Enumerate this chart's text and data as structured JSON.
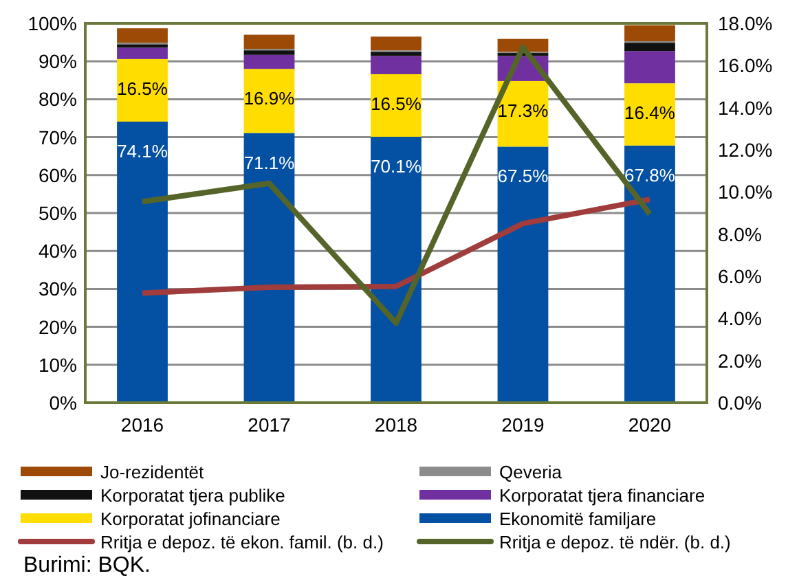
{
  "chart_data": {
    "type": "bar",
    "stacked": true,
    "categories": [
      "2016",
      "2017",
      "2018",
      "2019",
      "2020"
    ],
    "series": [
      {
        "name": "Ekonomitë familjare",
        "color": "#0450a2",
        "values": [
          74.1,
          71.1,
          70.1,
          67.5,
          67.8
        ],
        "value_labels": [
          "74.1%",
          "71.1%",
          "70.1%",
          "67.5%",
          "67.8%"
        ]
      },
      {
        "name": "Korporatat jofinanciare",
        "color": "#ffdd00",
        "values": [
          16.5,
          16.9,
          16.5,
          17.3,
          16.4
        ],
        "value_labels": [
          "16.5%",
          "16.9%",
          "16.5%",
          "17.3%",
          "16.4%"
        ]
      },
      {
        "name": "Korporatat tjera financiare",
        "color": "#7030a0",
        "values": [
          3.0,
          3.7,
          4.8,
          6.6,
          8.5
        ]
      },
      {
        "name": "Korporatat tjera publike",
        "color": "#111111",
        "values": [
          0.9,
          1.2,
          1.1,
          0.8,
          2.2
        ]
      },
      {
        "name": "Qeveria",
        "color": "#8c8c8c",
        "values": [
          0.4,
          0.4,
          0.4,
          0.3,
          0.4
        ]
      },
      {
        "name": "Jo-rezidentët",
        "color": "#9c4a06",
        "values": [
          3.8,
          3.7,
          3.6,
          3.4,
          4.2
        ]
      },
      {
        "name": "Rritja e depoz. të ekon. famil. (b. d.)",
        "type": "line",
        "axis": "y2",
        "color": "#a03c3c",
        "values": [
          5.2,
          5.48,
          5.52,
          8.5,
          9.65
        ]
      },
      {
        "name": "Rritja e depoz. të ndër. (b. d.)",
        "type": "line",
        "axis": "y2",
        "color": "#55652a",
        "values": [
          9.54,
          10.41,
          3.78,
          16.87,
          8.95
        ]
      }
    ],
    "ylim": [
      0,
      100
    ],
    "yticks": [
      {
        "value": 0,
        "label": "0%"
      },
      {
        "value": 10,
        "label": "10%"
      },
      {
        "value": 20,
        "label": "20%"
      },
      {
        "value": 30,
        "label": "30%"
      },
      {
        "value": 40,
        "label": "40%"
      },
      {
        "value": 50,
        "label": "50%"
      },
      {
        "value": 60,
        "label": "60%"
      },
      {
        "value": 70,
        "label": "70%"
      },
      {
        "value": 80,
        "label": "80%"
      },
      {
        "value": 90,
        "label": "90%"
      },
      {
        "value": 100,
        "label": "100%"
      }
    ],
    "y2lim": [
      0,
      18
    ],
    "y2ticks": [
      {
        "value": 0,
        "label": "0.0%"
      },
      {
        "value": 2,
        "label": "2.0%"
      },
      {
        "value": 4,
        "label": "4.0%"
      },
      {
        "value": 6,
        "label": "6.0%"
      },
      {
        "value": 8,
        "label": "8.0%"
      },
      {
        "value": 10,
        "label": "10.0%"
      },
      {
        "value": 12,
        "label": "12.0%"
      },
      {
        "value": 14,
        "label": "14.0%"
      },
      {
        "value": 16,
        "label": "16.0%"
      },
      {
        "value": 18,
        "label": "18.0%"
      }
    ],
    "grid": "y",
    "legend": "bottom",
    "marker": "none",
    "annotations": [
      "Burimi: BQK."
    ]
  }
}
